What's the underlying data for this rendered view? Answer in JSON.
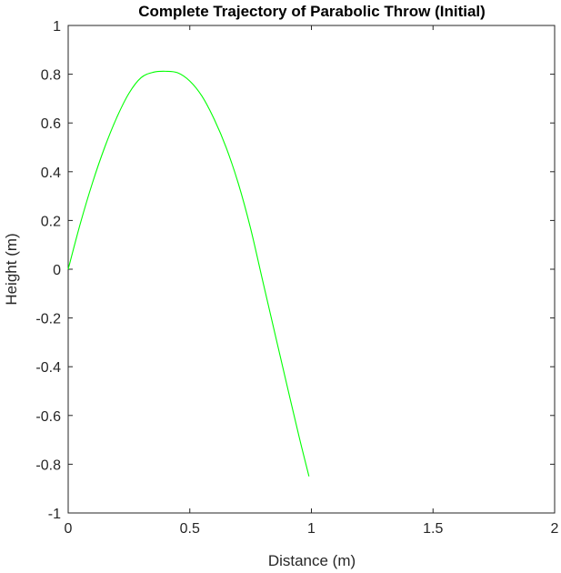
{
  "chart_data": {
    "type": "line",
    "title": "Complete Trajectory of Parabolic Throw (Initial)",
    "xlabel": "Distance (m)",
    "ylabel": "Height (m)",
    "xlim": [
      0,
      2
    ],
    "ylim": [
      -1,
      1
    ],
    "x_ticks": [
      0,
      0.5,
      1,
      1.5,
      2
    ],
    "x_tick_labels": [
      "0",
      "0.5",
      "1",
      "1.5",
      "2"
    ],
    "y_ticks": [
      -1,
      -0.8,
      -0.6,
      -0.4,
      -0.2,
      0,
      0.2,
      0.4,
      0.6,
      0.8,
      1
    ],
    "y_tick_labels": [
      "-1",
      "-0.8",
      "-0.6",
      "-0.4",
      "-0.2",
      "0",
      "0.2",
      "0.4",
      "0.6",
      "0.8",
      "1"
    ],
    "grid": false,
    "legend": "none",
    "series": [
      {
        "color": "#00ff00",
        "x": [
          0,
          0.05,
          0.1,
          0.15,
          0.2,
          0.25,
          0.3,
          0.35,
          0.4,
          0.45,
          0.5,
          0.55,
          0.6,
          0.65,
          0.7,
          0.75,
          0.8,
          0.85,
          0.9,
          0.95,
          0.99
        ],
        "y": [
          0,
          0.188,
          0.355,
          0.5,
          0.623,
          0.722,
          0.786,
          0.808,
          0.812,
          0.806,
          0.772,
          0.71,
          0.616,
          0.498,
          0.35,
          0.167,
          -0.049,
          -0.264,
          -0.478,
          -0.69,
          -0.85
        ]
      }
    ]
  }
}
